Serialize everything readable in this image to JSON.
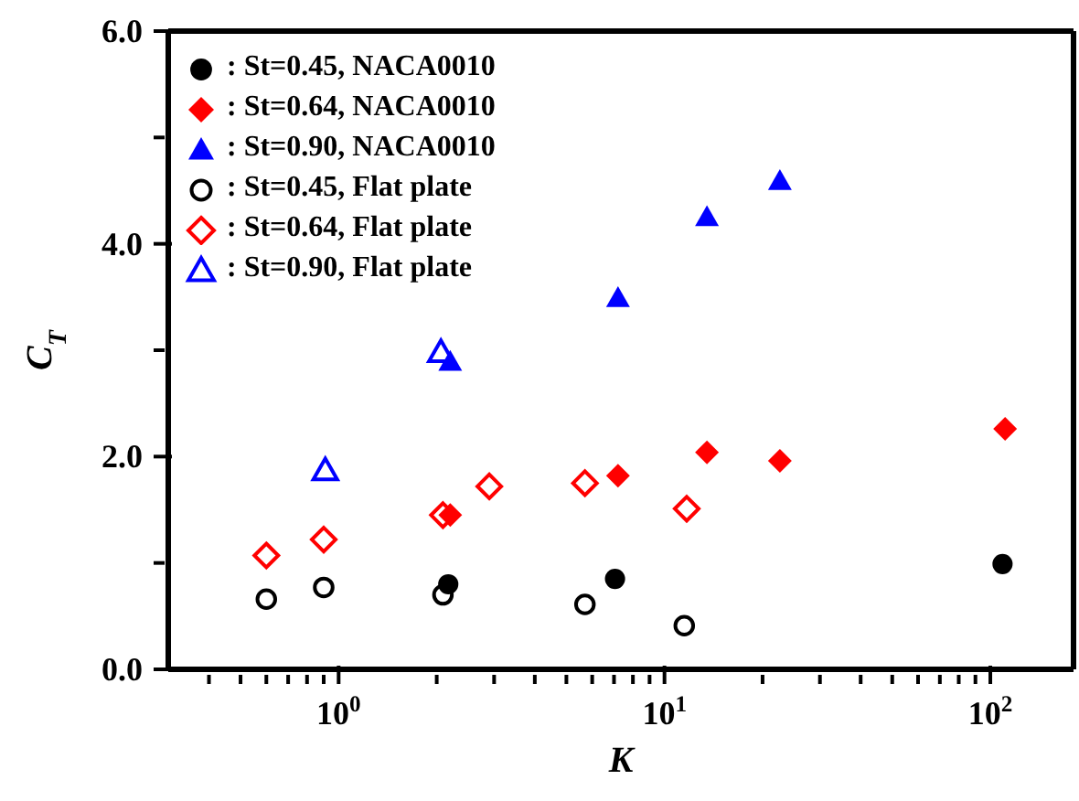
{
  "chart_data": {
    "type": "scatter",
    "xlabel": "K",
    "ylabel": "C$_{T}$",
    "log": "x",
    "xlim": [
      0.3,
      180
    ],
    "ylim": [
      0,
      6
    ],
    "xticks": [
      {
        "value": 0.4,
        "label": null
      },
      {
        "value": 0.5,
        "label": null
      },
      {
        "value": 0.6,
        "label": null
      },
      {
        "value": 0.7,
        "label": null
      },
      {
        "value": 0.8,
        "label": null
      },
      {
        "value": 0.9,
        "label": null
      },
      {
        "value": 1,
        "label": "10$^{0}$"
      },
      {
        "value": 2,
        "label": null
      },
      {
        "value": 3,
        "label": null
      },
      {
        "value": 4,
        "label": null
      },
      {
        "value": 5,
        "label": null
      },
      {
        "value": 6,
        "label": null
      },
      {
        "value": 7,
        "label": null
      },
      {
        "value": 8,
        "label": null
      },
      {
        "value": 9,
        "label": null
      },
      {
        "value": 10,
        "label": "10$^{1}$"
      },
      {
        "value": 20,
        "label": null
      },
      {
        "value": 30,
        "label": null
      },
      {
        "value": 40,
        "label": null
      },
      {
        "value": 50,
        "label": null
      },
      {
        "value": 60,
        "label": null
      },
      {
        "value": 70,
        "label": null
      },
      {
        "value": 80,
        "label": null
      },
      {
        "value": 90,
        "label": null
      },
      {
        "value": 100,
        "label": "10$^{2}$"
      }
    ],
    "yticks": [
      {
        "value": 0,
        "label": "0.0"
      },
      {
        "value": 1,
        "label": null
      },
      {
        "value": 2,
        "label": "2.0"
      },
      {
        "value": 3,
        "label": null
      },
      {
        "value": 4,
        "label": "4.0"
      },
      {
        "value": 5,
        "label": null
      },
      {
        "value": 6,
        "label": "6.0"
      }
    ],
    "legend": "top left",
    "series": [
      {
        "name": ": St=0.45, NACA0010",
        "color": "#000000",
        "marker": "circle",
        "x": [
          2.17,
          7.05,
          109
        ],
        "values": [
          0.8,
          0.85,
          0.99
        ]
      },
      {
        "name": ": St=0.64, NACA0010",
        "color": "#ff0000",
        "marker": "diamond",
        "x": [
          2.2,
          7.2,
          13.5,
          22.6,
          111
        ],
        "values": [
          1.45,
          1.82,
          2.04,
          1.96,
          2.26
        ]
      },
      {
        "name": ": St=0.90, NACA0010",
        "color": "#0000ff",
        "marker": "triangle",
        "x": [
          2.2,
          7.2,
          13.5,
          22.6
        ],
        "values": [
          2.89,
          3.49,
          4.25,
          4.59
        ]
      },
      {
        "name": ": St=0.45, Flat plate",
        "color": "#000000",
        "marker": "circle-open",
        "x": [
          0.6,
          0.9,
          2.09,
          5.7,
          11.5
        ],
        "values": [
          0.66,
          0.77,
          0.7,
          0.61,
          0.41
        ]
      },
      {
        "name": ": St=0.64, Flat plate",
        "color": "#ff0000",
        "marker": "diamond-open",
        "x": [
          0.6,
          0.9,
          2.09,
          2.9,
          5.7,
          11.7
        ],
        "values": [
          1.07,
          1.22,
          1.45,
          1.72,
          1.75,
          1.51
        ]
      },
      {
        "name": ": St=0.90, Flat plate",
        "color": "#0000ff",
        "marker": "triangle-open",
        "x": [
          0.91,
          2.06
        ],
        "values": [
          1.87,
          2.98
        ]
      }
    ]
  }
}
